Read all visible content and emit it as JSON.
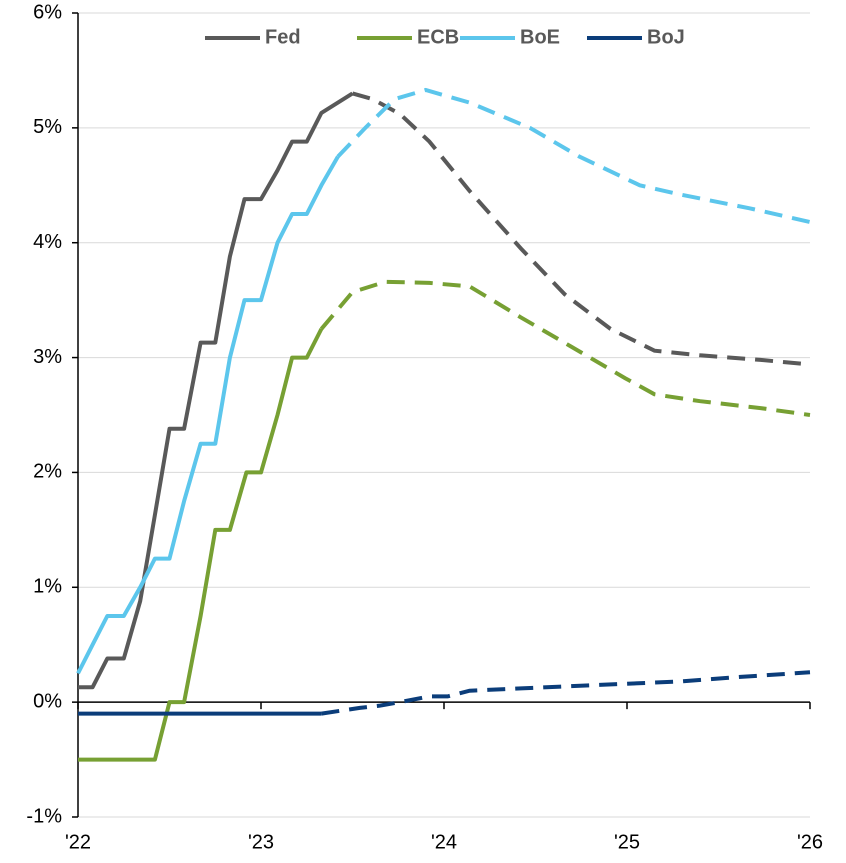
{
  "chart_data": {
    "type": "line",
    "xlim": [
      2022,
      2026
    ],
    "xticks": [
      {
        "value": 2022,
        "label": "'22"
      },
      {
        "value": 2023,
        "label": "'23"
      },
      {
        "value": 2024,
        "label": "'24"
      },
      {
        "value": 2025,
        "label": "'25"
      },
      {
        "value": 2026,
        "label": "'26"
      }
    ],
    "ylim": [
      -1,
      6
    ],
    "yticks": [
      {
        "value": -1,
        "label": "-1%"
      },
      {
        "value": 0,
        "label": "0%"
      },
      {
        "value": 1,
        "label": "1%"
      },
      {
        "value": 2,
        "label": "2%"
      },
      {
        "value": 3,
        "label": "3%"
      },
      {
        "value": 4,
        "label": "4%"
      },
      {
        "value": 5,
        "label": "5%"
      },
      {
        "value": 6,
        "label": "6%"
      }
    ],
    "grid": true,
    "legend": "top",
    "series": [
      {
        "name": "Fed",
        "color": "#595959",
        "x": [
          2022,
          2022.08,
          2022.16,
          2022.25,
          2022.34,
          2022.42,
          2022.5,
          2022.58,
          2022.67,
          2022.75,
          2022.83,
          2022.91,
          2023.0,
          2023.09,
          2023.17,
          2023.25,
          2023.33,
          2023.5
        ],
        "values": [
          0.13,
          0.13,
          0.38,
          0.38,
          0.88,
          1.63,
          2.38,
          2.38,
          3.13,
          3.13,
          3.88,
          4.38,
          4.38,
          4.63,
          4.88,
          4.88,
          5.13,
          5.3
        ],
        "forecast_x": [
          2023.5,
          2023.61,
          2023.76,
          2023.92,
          2024.14,
          2024.42,
          2024.66,
          2024.91,
          2025.15,
          2025.4,
          2025.73,
          2026.0
        ],
        "forecast_values": [
          5.3,
          5.25,
          5.12,
          4.88,
          4.45,
          3.95,
          3.55,
          3.25,
          3.06,
          3.02,
          2.98,
          2.94
        ]
      },
      {
        "name": "ECB",
        "color": "#77a033",
        "x": [
          2022,
          2022.42,
          2022.5,
          2022.58,
          2022.67,
          2022.75,
          2022.83,
          2022.92,
          2023.0,
          2023.09,
          2023.17,
          2023.25,
          2023.33
        ],
        "values": [
          -0.5,
          -0.5,
          0,
          0,
          0.75,
          1.5,
          1.5,
          2.0,
          2.0,
          2.5,
          3.0,
          3.0,
          3.25
        ],
        "forecast_x": [
          2023.33,
          2023.5,
          2023.68,
          2023.92,
          2024.14,
          2024.42,
          2024.69,
          2024.99,
          2025.15,
          2025.4,
          2025.73,
          2026.0
        ],
        "forecast_values": [
          3.25,
          3.57,
          3.66,
          3.65,
          3.62,
          3.35,
          3.1,
          2.82,
          2.68,
          2.62,
          2.56,
          2.5
        ]
      },
      {
        "name": "BoE",
        "color": "#5cc6ec",
        "x": [
          2022,
          2022.08,
          2022.16,
          2022.25,
          2022.34,
          2022.42,
          2022.5,
          2022.58,
          2022.67,
          2022.75,
          2022.83,
          2022.91,
          2023.0,
          2023.09,
          2023.17,
          2023.25,
          2023.33,
          2023.42
        ],
        "values": [
          0.25,
          0.5,
          0.75,
          0.75,
          1.0,
          1.25,
          1.25,
          1.75,
          2.25,
          2.25,
          3.0,
          3.5,
          3.5,
          4.0,
          4.25,
          4.25,
          4.5,
          4.75
        ],
        "forecast_x": [
          2023.42,
          2023.57,
          2023.73,
          2023.9,
          2024.14,
          2024.47,
          2024.74,
          2025.07,
          2025.29,
          2025.67,
          2026.0
        ],
        "forecast_values": [
          4.75,
          5.0,
          5.25,
          5.33,
          5.22,
          5.0,
          4.75,
          4.5,
          4.42,
          4.3,
          4.18
        ]
      },
      {
        "name": "BoJ",
        "color": "#0b3d7a",
        "x": [
          2022,
          2023.33
        ],
        "values": [
          -0.1,
          -0.1
        ],
        "forecast_x": [
          2023.33,
          2023.54,
          2023.65,
          2023.76,
          2023.92,
          2024.02,
          2024.14,
          2024.42,
          2024.85,
          2025.29,
          2025.62,
          2026.0
        ],
        "forecast_values": [
          -0.1,
          -0.05,
          -0.03,
          0.0,
          0.05,
          0.05,
          0.1,
          0.12,
          0.15,
          0.18,
          0.22,
          0.26
        ]
      }
    ]
  }
}
